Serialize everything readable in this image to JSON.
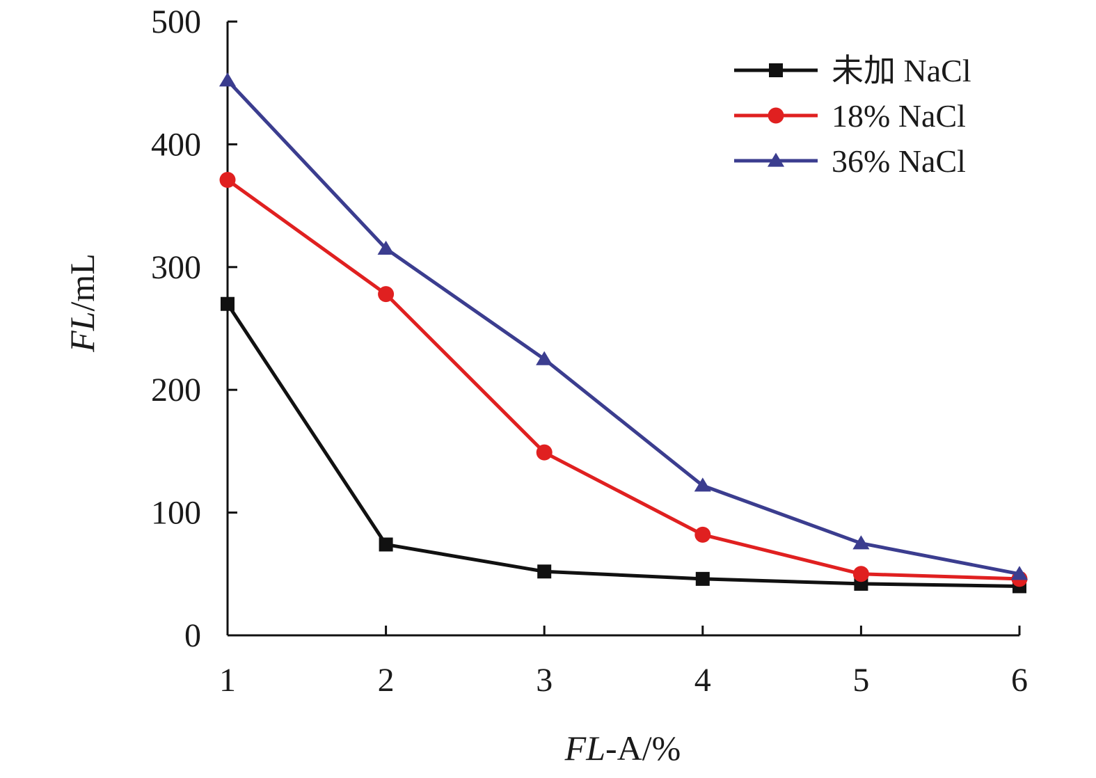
{
  "chart_data": {
    "type": "line",
    "x": [
      1,
      2,
      3,
      4,
      5,
      6
    ],
    "x_ticks": [
      "1",
      "2",
      "3",
      "4",
      "5",
      "6"
    ],
    "y_ticks": [
      "0",
      "100",
      "200",
      "300",
      "400",
      "500"
    ],
    "xlim": [
      1,
      6
    ],
    "ylim": [
      0,
      500
    ],
    "grid": false,
    "legend_position": "top-right",
    "xlabel": {
      "italic": "FL",
      "rest": "-A/%"
    },
    "ylabel": {
      "italic": "FL",
      "rest": "/mL"
    },
    "series": [
      {
        "name": "未加 NaCl",
        "marker": "square",
        "color": "#111111",
        "values": [
          270,
          74,
          52,
          46,
          42,
          40
        ]
      },
      {
        "name": "18% NaCl",
        "marker": "circle",
        "color": "#e02020",
        "values": [
          371,
          278,
          149,
          82,
          50,
          46
        ]
      },
      {
        "name": "36% NaCl",
        "marker": "triangle",
        "color": "#3b3d8f",
        "values": [
          452,
          315,
          225,
          122,
          75,
          50
        ]
      }
    ]
  }
}
